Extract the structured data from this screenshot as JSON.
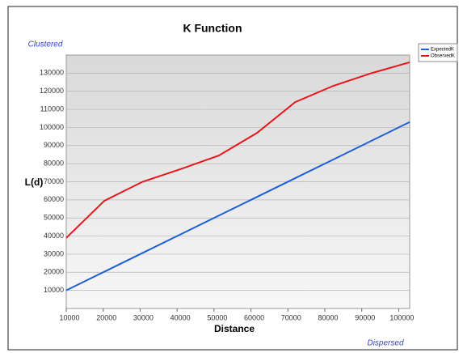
{
  "chart_data": {
    "type": "line",
    "title": "K Function",
    "x_label": "Distance",
    "y_label": "L(d)",
    "annotations": [
      "Clustered",
      "Dispersed"
    ],
    "x": [
      10000,
      20330,
      30660,
      40990,
      51320,
      61650,
      71980,
      82310,
      92640,
      102970
    ],
    "series": [
      {
        "name": "ExpectedK",
        "color": "#1f5fd6",
        "values": [
          10000,
          20330,
          30660,
          40990,
          51320,
          61650,
          71980,
          82310,
          92640,
          102970
        ]
      },
      {
        "name": "ObservedK",
        "color": "#e8161b",
        "values": [
          39000,
          59500,
          70000,
          77000,
          84500,
          97000,
          114000,
          123000,
          130000,
          136000
        ]
      }
    ],
    "xlim": [
      10000,
      102970
    ],
    "ylim": [
      0,
      140000
    ],
    "xticks": [
      10000,
      20000,
      30000,
      40000,
      50000,
      60000,
      70000,
      80000,
      90000,
      100000
    ],
    "yticks": [
      10000,
      20000,
      30000,
      40000,
      50000,
      60000,
      70000,
      80000,
      90000,
      100000,
      110000,
      120000,
      130000
    ],
    "grid": true,
    "legend": "top-right"
  }
}
